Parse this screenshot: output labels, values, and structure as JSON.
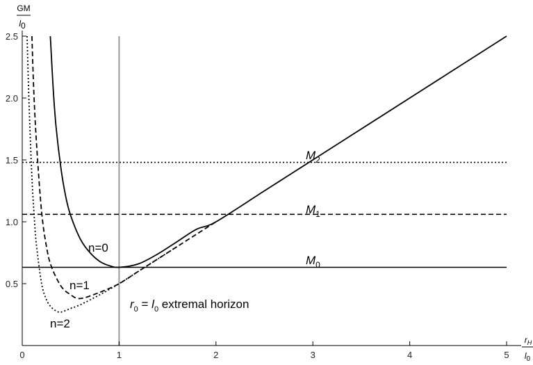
{
  "chart_data": {
    "type": "line",
    "title": "",
    "ylabel": {
      "numerator": "GM",
      "denominator": "l",
      "denominator_sub": "0"
    },
    "xlabel": {
      "numerator": "r",
      "numerator_sub": "H",
      "denominator": "l",
      "denominator_sub": "0"
    },
    "xlim": [
      0,
      5
    ],
    "ylim": [
      0,
      2.5
    ],
    "x_ticks": [
      0,
      1,
      2,
      3,
      4,
      5
    ],
    "y_ticks": [
      0.5,
      1.0,
      1.5,
      2.0,
      2.5
    ],
    "x_tick_labels": [
      "0",
      "1",
      "2",
      "3",
      "4",
      "5"
    ],
    "y_tick_labels": [
      "0.5",
      "1.0",
      "1.5",
      "2.0",
      "2.5"
    ],
    "grid": false,
    "colors": {
      "curve": "#000000",
      "vertical_marker": "#9a9a9a",
      "axis": "#000000"
    },
    "vertical_line": {
      "x": 1
    },
    "series": [
      {
        "name": "n=0",
        "style": "solid",
        "label_text": "n=0",
        "x": [
          0.29,
          0.32,
          0.35,
          0.4,
          0.45,
          0.5,
          0.6,
          0.7,
          0.8,
          0.9,
          1.0,
          1.2,
          1.4,
          1.6,
          1.8,
          2.0,
          2.5,
          3.0,
          4.0,
          5.0
        ],
        "y": [
          2.5,
          2.07,
          1.76,
          1.43,
          1.2,
          1.05,
          0.86,
          0.75,
          0.68,
          0.645,
          0.632,
          0.66,
          0.74,
          0.84,
          0.94,
          1.0,
          1.25,
          1.5,
          2.0,
          2.5
        ]
      },
      {
        "name": "n=1",
        "style": "dashed",
        "label_text": "n=1",
        "x": [
          0.1,
          0.12,
          0.15,
          0.2,
          0.25,
          0.3,
          0.4,
          0.5,
          0.6,
          0.8,
          1.0,
          1.2,
          1.4,
          1.6,
          1.8,
          2.0
        ],
        "y": [
          2.5,
          2.04,
          1.6,
          1.08,
          0.8,
          0.64,
          0.48,
          0.41,
          0.38,
          0.43,
          0.5,
          0.6,
          0.7,
          0.8,
          0.9,
          1.0
        ]
      },
      {
        "name": "n=2",
        "style": "dotted",
        "label_text": "n=2",
        "x": [
          0.05,
          0.07,
          0.1,
          0.13,
          0.15,
          0.2,
          0.25,
          0.3,
          0.35,
          0.4,
          0.5,
          0.6,
          0.8,
          1.0,
          1.2,
          1.4,
          1.6
        ],
        "y": [
          2.5,
          1.96,
          1.36,
          0.97,
          0.79,
          0.5,
          0.37,
          0.31,
          0.28,
          0.27,
          0.3,
          0.33,
          0.41,
          0.5,
          0.6,
          0.7,
          0.8
        ]
      }
    ],
    "horizontal_lines": [
      {
        "name": "M0",
        "label": "M",
        "label_sub": "0",
        "y": 0.632,
        "style": "solid"
      },
      {
        "name": "M1",
        "label": "M",
        "label_sub": "1",
        "y": 1.06,
        "style": "dashed"
      },
      {
        "name": "M2",
        "label": "M",
        "label_sub": "2",
        "y": 1.48,
        "style": "dotted"
      }
    ],
    "annotation": {
      "r_text": "r",
      "r_sub": "0",
      "eq_text": " = ",
      "l_text": "l",
      "l_sub": "0",
      "rest_text": " extremal horizon"
    }
  }
}
